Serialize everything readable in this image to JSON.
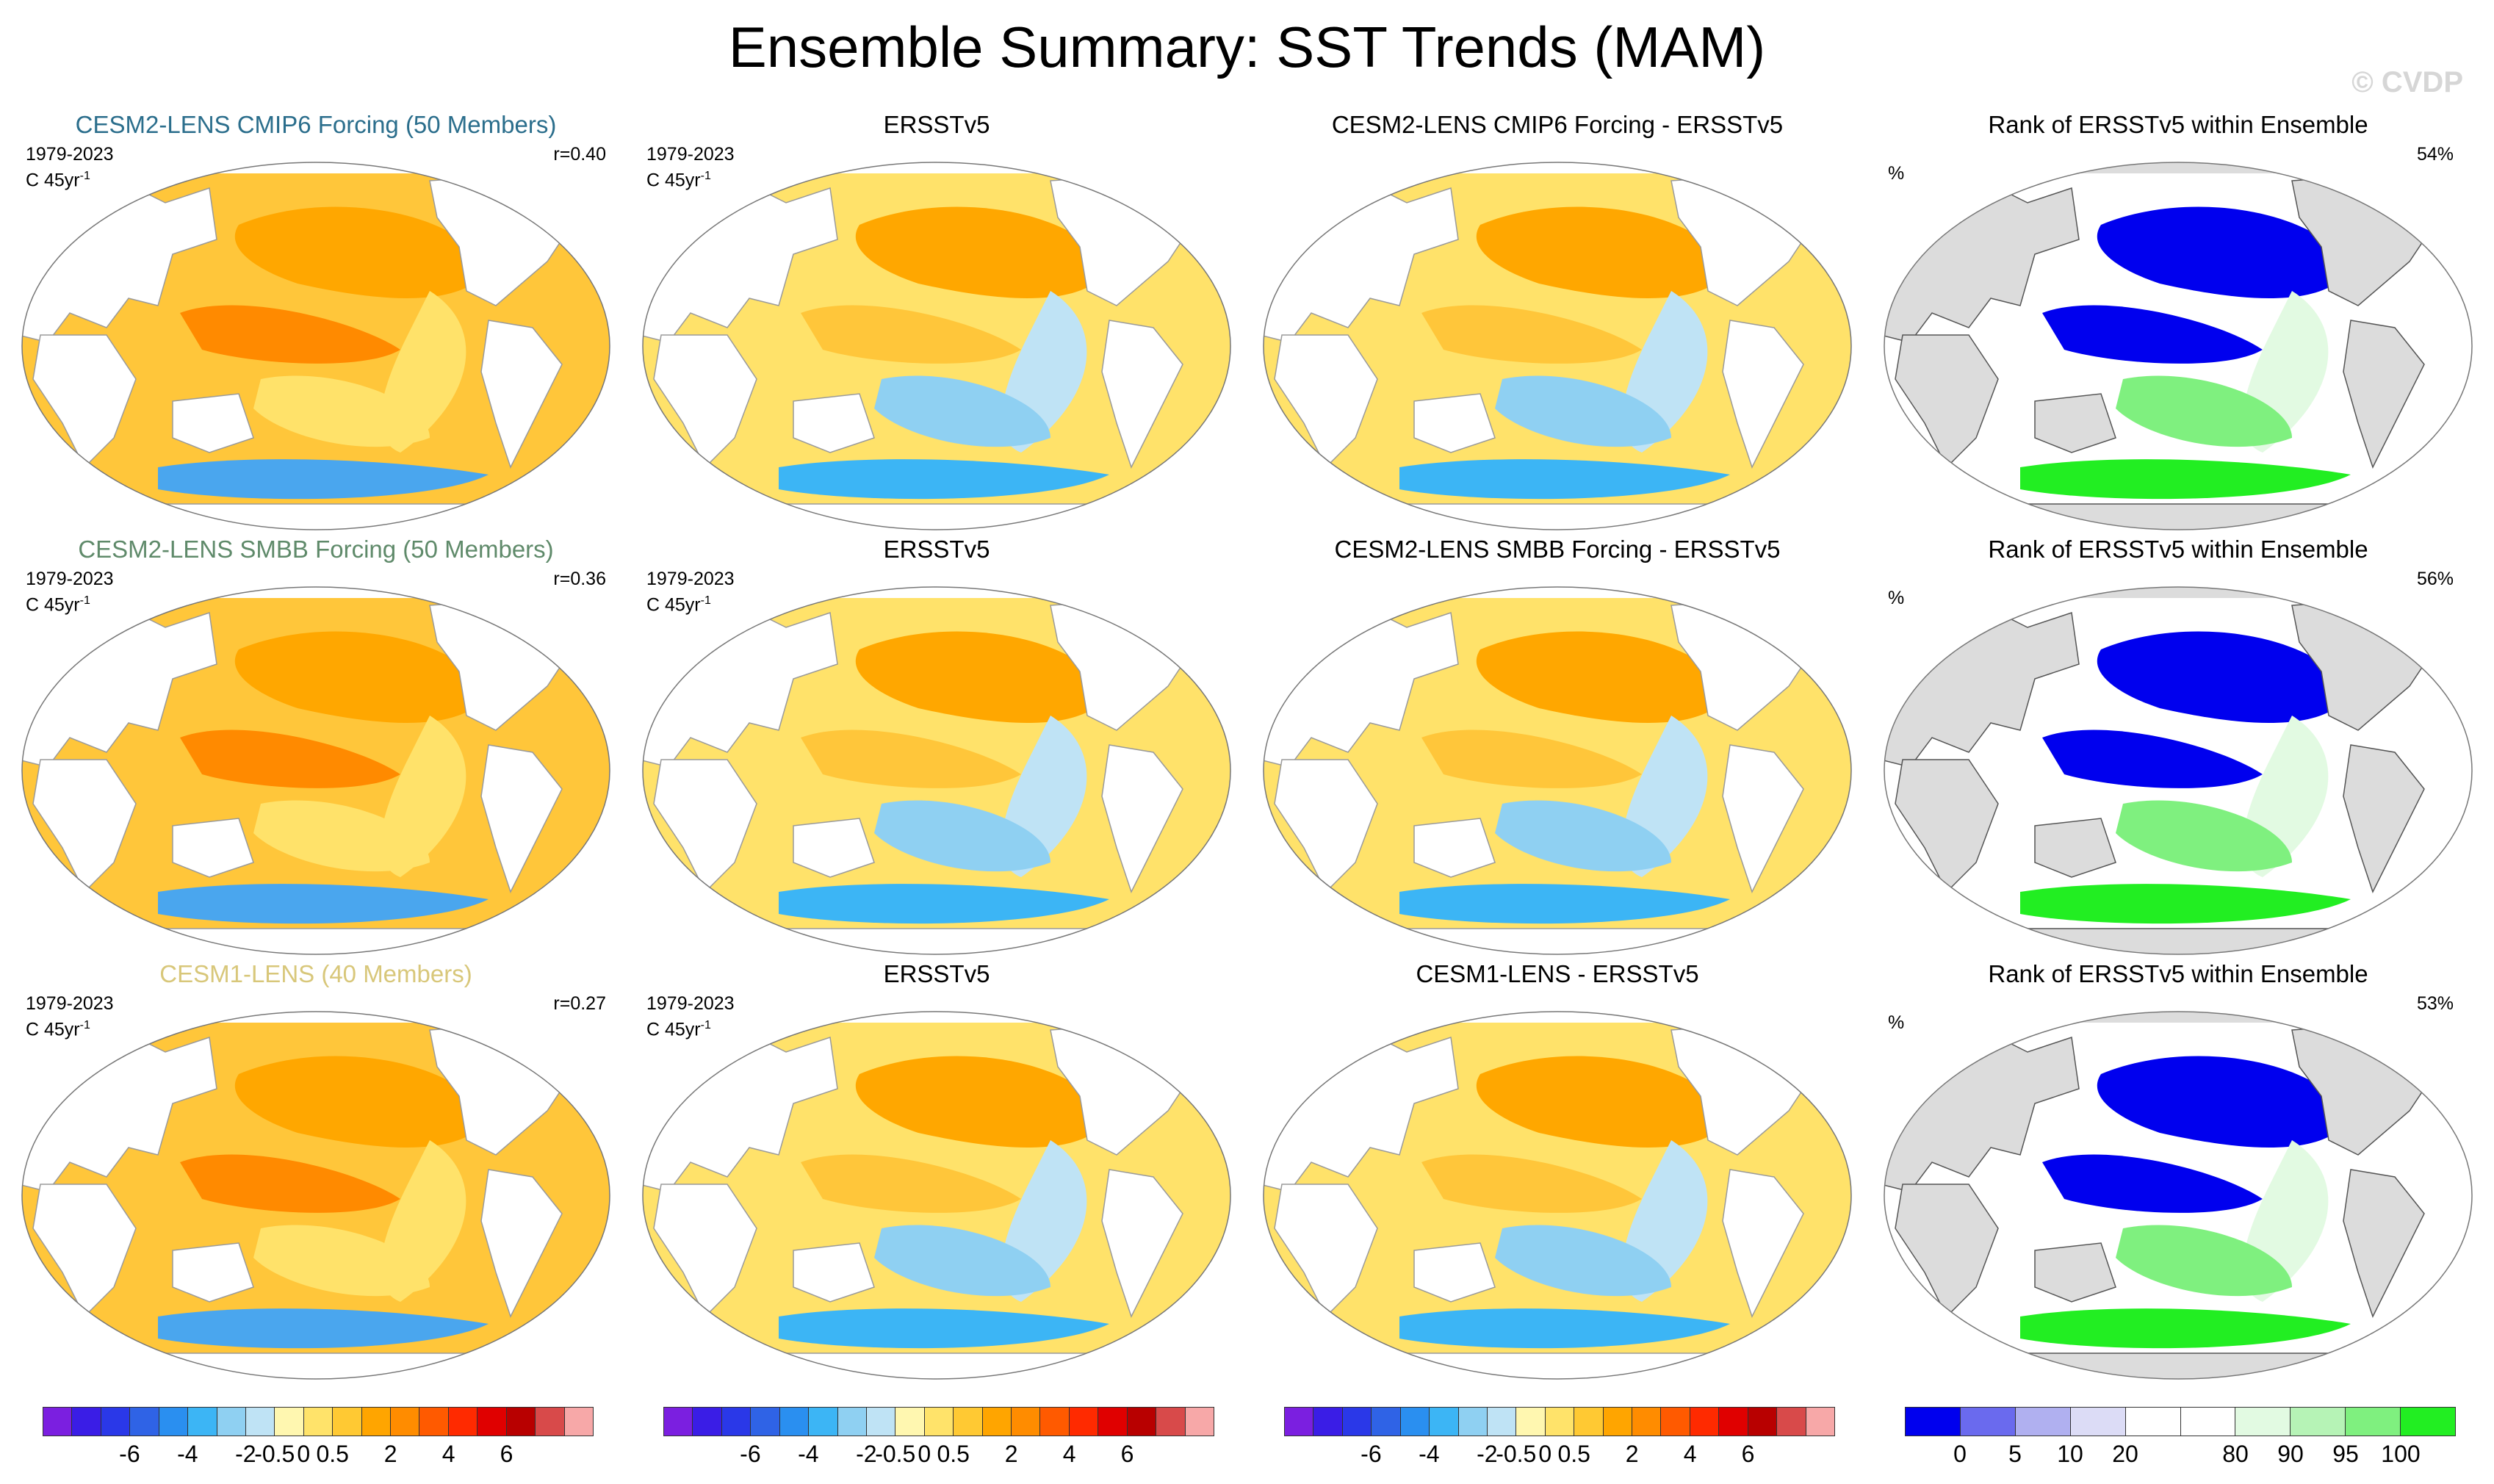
{
  "title": "Ensemble Summary: SST Trends (MAM)",
  "watermark": "© CVDP",
  "rows": [
    {
      "model": {
        "title": "CESM2-LENS CMIP6 Forcing (50 Members)",
        "title_color": "#2b6e8c",
        "period": "1979-2023",
        "units": "C 45yr",
        "units_sup": "-1",
        "r": "r=0.40"
      },
      "obs": {
        "title": "ERSSTv5",
        "period": "1979-2023",
        "units": "C 45yr",
        "units_sup": "-1"
      },
      "diff": {
        "title": "CESM2-LENS CMIP6 Forcing - ERSSTv5"
      },
      "rank": {
        "title": "Rank of ERSSTv5 within Ensemble",
        "unit": "%",
        "value": "54%"
      }
    },
    {
      "model": {
        "title": "CESM2-LENS SMBB Forcing (50 Members)",
        "title_color": "#5f8a6a",
        "period": "1979-2023",
        "units": "C 45yr",
        "units_sup": "-1",
        "r": "r=0.36"
      },
      "obs": {
        "title": "ERSSTv5",
        "period": "1979-2023",
        "units": "C 45yr",
        "units_sup": "-1"
      },
      "diff": {
        "title": "CESM2-LENS SMBB Forcing - ERSSTv5"
      },
      "rank": {
        "title": "Rank of ERSSTv5 within Ensemble",
        "unit": "%",
        "value": "56%"
      }
    },
    {
      "model": {
        "title": "CESM1-LENS (40 Members)",
        "title_color": "#d8c77a",
        "period": "1979-2023",
        "units": "C 45yr",
        "units_sup": "-1",
        "r": "r=0.27"
      },
      "obs": {
        "title": "ERSSTv5",
        "period": "1979-2023",
        "units": "C 45yr",
        "units_sup": "-1"
      },
      "diff": {
        "title": "CESM1-LENS - ERSSTv5"
      },
      "rank": {
        "title": "Rank of ERSSTv5 within Ensemble",
        "unit": "%",
        "value": "53%"
      }
    }
  ],
  "colorbars": {
    "trend": {
      "colors": [
        "#7b1fe0",
        "#3a1de6",
        "#2a38e8",
        "#2f63e6",
        "#2a8ff0",
        "#3cb5f5",
        "#8fd0f2",
        "#bfe3f5",
        "#fff7b0",
        "#ffe36a",
        "#ffc933",
        "#ffa500",
        "#ff8c00",
        "#ff5a00",
        "#ff2a00",
        "#e00000",
        "#b80000",
        "#d84a4a",
        "#f7a8a8"
      ],
      "ticks": [
        "-6",
        "-4",
        "-2",
        "-0.5",
        "0",
        "0.5",
        "2",
        "4",
        "6"
      ]
    },
    "rank": {
      "colors": [
        "#0000ee",
        "#6a6aee",
        "#b0b0f0",
        "#dcdcf6",
        "#ffffff",
        "#ffffff",
        "#e2fae2",
        "#b6f3b6",
        "#7ff07f",
        "#22ee22"
      ],
      "ticks": [
        "0",
        "5",
        "10",
        "20",
        "80",
        "90",
        "95",
        "100"
      ]
    }
  }
}
